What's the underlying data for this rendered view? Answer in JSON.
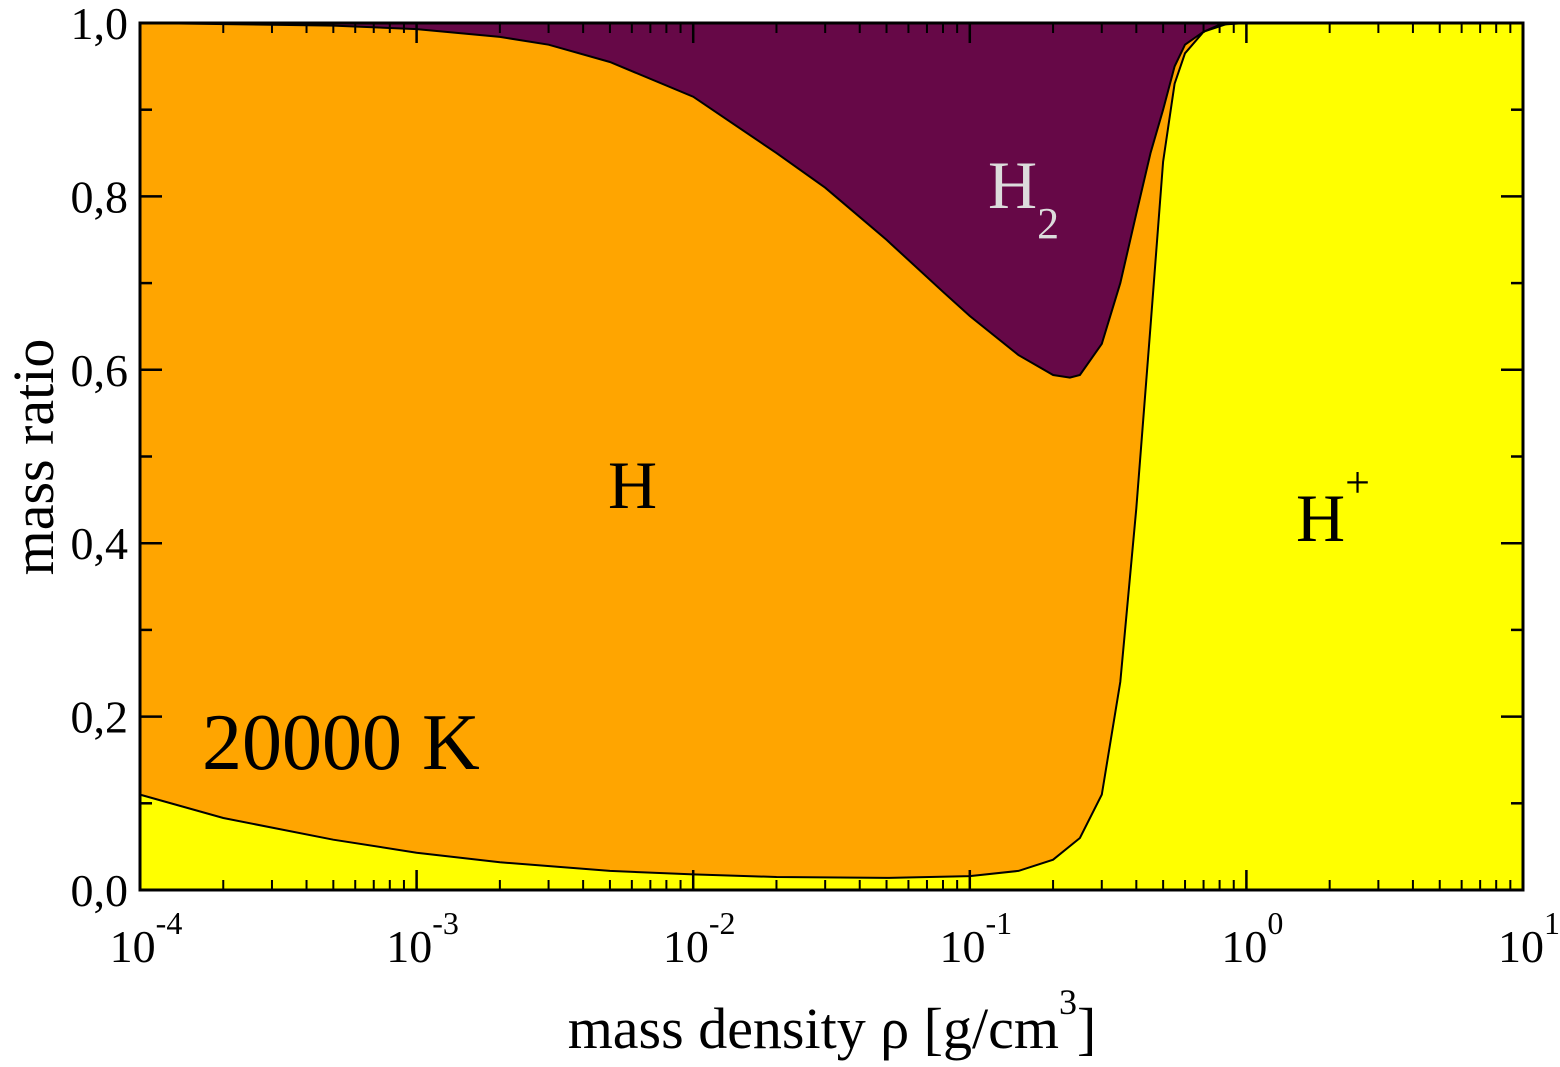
{
  "chart_data": {
    "type": "area",
    "xscale": "log",
    "xlim": [
      0.0001,
      10
    ],
    "ylim": [
      0.0,
      1.0
    ],
    "xlabel": {
      "text": "mass density ρ [g/cm",
      "sup": "3",
      "suffix": "]"
    },
    "ylabel": "mass ratio",
    "grid": false,
    "legend": "none",
    "annotation": "20000 K",
    "x_ticks": [
      {
        "value": 0.0001,
        "base": "10",
        "exp": "-4"
      },
      {
        "value": 0.001,
        "base": "10",
        "exp": "-3"
      },
      {
        "value": 0.01,
        "base": "10",
        "exp": "-2"
      },
      {
        "value": 0.1,
        "base": "10",
        "exp": "-1"
      },
      {
        "value": 1,
        "base": "10",
        "exp": "0"
      },
      {
        "value": 10,
        "base": "10",
        "exp": "1"
      }
    ],
    "y_ticks": [
      {
        "value": 0.0,
        "label": "0,0"
      },
      {
        "value": 0.2,
        "label": "0,2"
      },
      {
        "value": 0.4,
        "label": "0,4"
      },
      {
        "value": 0.6,
        "label": "0,6"
      },
      {
        "value": 0.8,
        "label": "0,8"
      },
      {
        "value": 1.0,
        "label": "1,0"
      }
    ],
    "series": [
      {
        "region": "H_plus",
        "color": "#ffff00",
        "boundary_name": "H+ / H boundary",
        "x": [
          0.0001,
          0.0002,
          0.0005,
          0.001,
          0.002,
          0.005,
          0.01,
          0.02,
          0.05,
          0.1,
          0.15,
          0.2,
          0.25,
          0.3,
          0.35,
          0.4,
          0.45,
          0.5,
          0.55,
          0.6,
          0.7,
          0.85,
          1.0,
          10
        ],
        "y": [
          0.11,
          0.083,
          0.058,
          0.043,
          0.032,
          0.022,
          0.018,
          0.015,
          0.014,
          0.016,
          0.022,
          0.035,
          0.06,
          0.11,
          0.24,
          0.44,
          0.65,
          0.84,
          0.93,
          0.965,
          0.99,
          0.999,
          1.0,
          1.0
        ]
      },
      {
        "region": "H",
        "color": "#ffa500",
        "boundary_name": "H / H2 boundary",
        "x": [
          0.0001,
          0.0005,
          0.001,
          0.002,
          0.003,
          0.005,
          0.01,
          0.02,
          0.03,
          0.05,
          0.08,
          0.1,
          0.15,
          0.2,
          0.23,
          0.25,
          0.3,
          0.35,
          0.4,
          0.45,
          0.5,
          0.55,
          0.6,
          0.7,
          0.8,
          1.0,
          10
        ],
        "y": [
          1.0,
          0.997,
          0.993,
          0.984,
          0.975,
          0.955,
          0.915,
          0.85,
          0.81,
          0.75,
          0.69,
          0.662,
          0.617,
          0.594,
          0.591,
          0.594,
          0.63,
          0.7,
          0.78,
          0.85,
          0.9,
          0.95,
          0.975,
          0.99,
          0.998,
          1.0,
          1.0
        ]
      },
      {
        "region": "H2",
        "color": "#660847",
        "boundary_name": "top",
        "x": [
          0.0001,
          10
        ],
        "y": [
          1.0,
          1.0
        ]
      }
    ],
    "region_labels": [
      {
        "text": "H",
        "sub": "",
        "sup": "",
        "color": "#000000"
      },
      {
        "text": "H",
        "sub": "2",
        "sup": "",
        "color": "#dcdcdc"
      },
      {
        "text": "H",
        "sub": "",
        "sup": "+",
        "color": "#000000"
      }
    ]
  }
}
